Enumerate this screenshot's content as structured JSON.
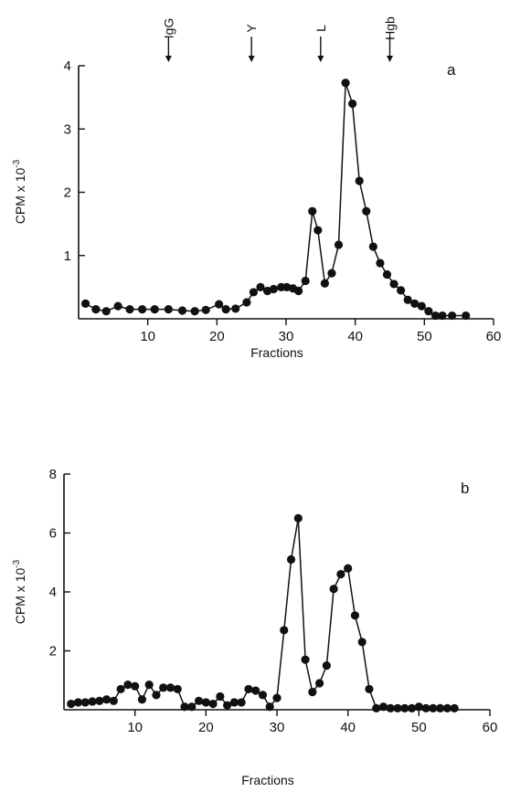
{
  "chart_data": [
    {
      "type": "line",
      "panel_label": "a",
      "xlabel": "Fractions",
      "ylabel": "CPM x 10",
      "ylabel_exponent": "-3",
      "xlim": [
        0,
        60
      ],
      "ylim": [
        0,
        4
      ],
      "xticks": [
        10,
        20,
        30,
        40,
        50,
        60
      ],
      "yticks": [
        1,
        2,
        3,
        4
      ],
      "grid": false,
      "markers": [
        {
          "label": "IgG",
          "x": 13
        },
        {
          "label": "Y",
          "x": 25
        },
        {
          "label": "L",
          "x": 35
        },
        {
          "label": "Hgb",
          "x": 45
        }
      ],
      "series": [
        {
          "x": [
            1,
            2.5,
            4,
            5.7,
            7.4,
            9.2,
            11,
            13,
            15,
            16.8,
            18.4,
            20.3,
            21.3,
            22.7,
            24.3,
            25.3,
            26.3,
            27.3,
            28.2,
            29.3,
            30.1,
            31,
            31.8,
            32.8,
            33.8,
            34.6,
            35.6,
            36.6,
            37.6,
            38.6,
            39.6,
            40.6,
            41.6,
            42.6,
            43.6,
            44.6,
            45.6,
            46.6,
            47.6,
            48.6,
            49.6,
            50.6,
            51.6,
            52.6,
            54,
            56
          ],
          "y": [
            0.24,
            0.15,
            0.12,
            0.2,
            0.15,
            0.15,
            0.15,
            0.15,
            0.13,
            0.12,
            0.14,
            0.23,
            0.15,
            0.16,
            0.26,
            0.42,
            0.5,
            0.44,
            0.47,
            0.5,
            0.5,
            0.48,
            0.44,
            0.6,
            1.7,
            1.4,
            0.56,
            0.72,
            1.17,
            3.73,
            3.4,
            2.18,
            1.7,
            1.14,
            0.88,
            0.7,
            0.55,
            0.45,
            0.3,
            0.24,
            0.2,
            0.12,
            0.05,
            0.05,
            0.05,
            0.05
          ]
        }
      ]
    },
    {
      "type": "line",
      "panel_label": "b",
      "xlabel": "Fractions",
      "ylabel": "CPM x 10",
      "ylabel_exponent": "-3",
      "xlim": [
        0,
        60
      ],
      "ylim": [
        0,
        8
      ],
      "xticks": [
        10,
        20,
        30,
        40,
        50,
        60
      ],
      "yticks": [
        2,
        4,
        6,
        8
      ],
      "grid": false,
      "series": [
        {
          "x": [
            1,
            2,
            3,
            4,
            5,
            6,
            7,
            8,
            9,
            10,
            11,
            12,
            13,
            14,
            15,
            16,
            17,
            18,
            19,
            20,
            21,
            22,
            23,
            24,
            25,
            26,
            27,
            28,
            29,
            30,
            31,
            32,
            33,
            34,
            35,
            36,
            37,
            38,
            39,
            40,
            41,
            42,
            43,
            44,
            45,
            46,
            47,
            48,
            49,
            50,
            51,
            52,
            53,
            54,
            55
          ],
          "y": [
            0.2,
            0.25,
            0.25,
            0.28,
            0.3,
            0.35,
            0.3,
            0.7,
            0.85,
            0.8,
            0.35,
            0.85,
            0.5,
            0.75,
            0.75,
            0.7,
            0.1,
            0.1,
            0.3,
            0.25,
            0.2,
            0.45,
            0.15,
            0.25,
            0.25,
            0.7,
            0.65,
            0.5,
            0.1,
            0.4,
            2.7,
            5.1,
            6.5,
            1.7,
            0.6,
            0.9,
            1.5,
            4.1,
            4.6,
            4.8,
            3.2,
            2.3,
            0.7,
            0.05,
            0.1,
            0.05,
            0.05,
            0.05,
            0.05,
            0.1,
            0.05,
            0.05,
            0.05,
            0.05,
            0.05
          ]
        }
      ]
    }
  ]
}
